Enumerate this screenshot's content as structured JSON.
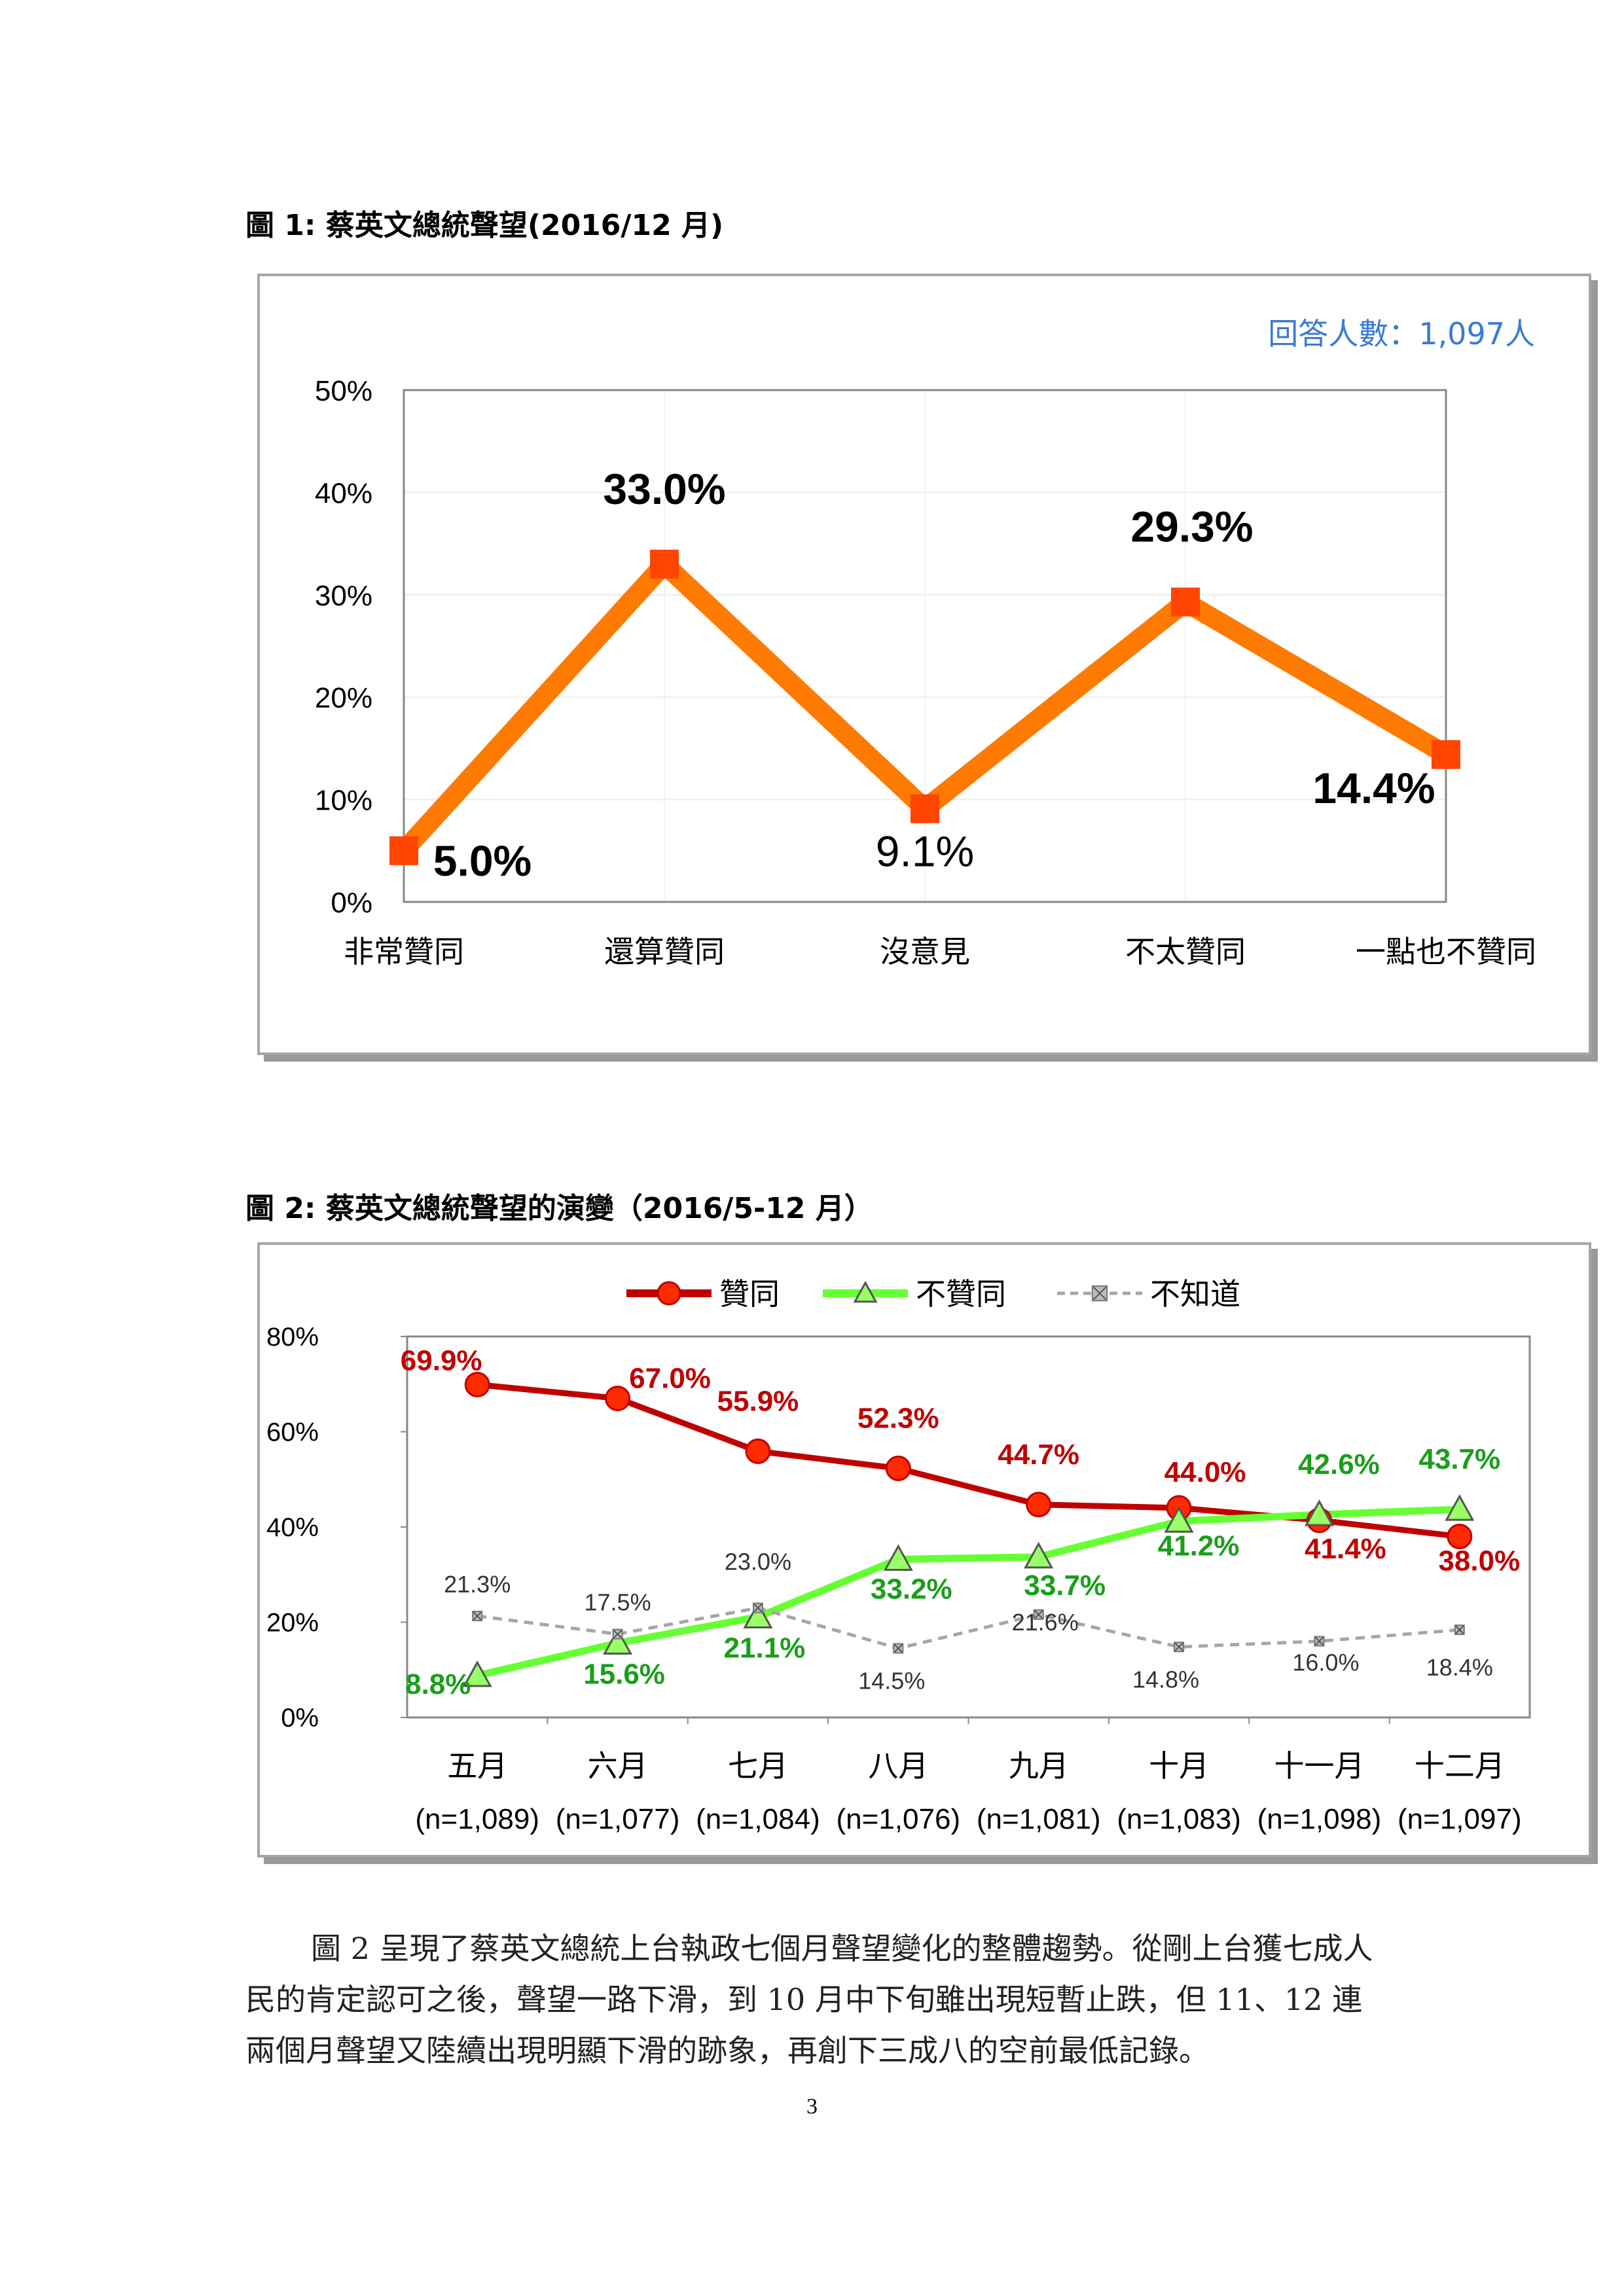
{
  "figure1": {
    "title": "圖 1:  蔡英文總統聲望(2016/12 月)",
    "respondents": "回答人數：1,097人",
    "chart_data": {
      "type": "line",
      "categories": [
        "非常贊同",
        "還算贊同",
        "沒意見",
        "不太贊同",
        "一點也不贊同"
      ],
      "values": [
        5.0,
        33.0,
        9.1,
        29.3,
        14.4
      ],
      "data_labels": [
        "5.0%",
        "33.0%",
        "9.1%",
        "29.3%",
        "14.4%"
      ],
      "ylim": [
        0,
        50
      ],
      "yticks": [
        "0%",
        "10%",
        "20%",
        "30%",
        "40%",
        "50%"
      ],
      "grid": true,
      "line_color": "#ff7a00",
      "marker_color": "#ff4500"
    }
  },
  "figure2": {
    "title": "圖 2:  蔡英文總統聲望的演變（2016/5-12 月）",
    "chart_data": {
      "type": "line",
      "categories": [
        "五月",
        "六月",
        "七月",
        "八月",
        "九月",
        "十月",
        "十一月",
        "十二月"
      ],
      "sample_sizes": [
        "(n=1,089)",
        "(n=1,077)",
        "(n=1,084)",
        "(n=1,076)",
        "(n=1,081)",
        "(n=1,083)",
        "(n=1,098)",
        "(n=1,097)"
      ],
      "ylim": [
        0,
        80
      ],
      "yticks": [
        "0%",
        "20%",
        "40%",
        "60%",
        "80%"
      ],
      "legend_position": "top",
      "series": [
        {
          "name": "贊同",
          "values": [
            69.9,
            67.0,
            55.9,
            52.3,
            44.7,
            44.0,
            41.4,
            38.0
          ],
          "labels": [
            "69.9%",
            "67.0%",
            "55.9%",
            "52.3%",
            "44.7%",
            "44.0%",
            "41.4%",
            "38.0%"
          ],
          "color": "#c00000",
          "marker": "circle"
        },
        {
          "name": "不贊同",
          "values": [
            8.8,
            15.6,
            21.1,
            33.2,
            33.7,
            41.2,
            42.6,
            43.7
          ],
          "labels": [
            "8.8%",
            "15.6%",
            "21.1%",
            "33.2%",
            "33.7%",
            "41.2%",
            "42.6%",
            "43.7%"
          ],
          "color": "#66ff33",
          "label_color": "#1a9e1a",
          "marker": "triangle"
        },
        {
          "name": "不知道",
          "values": [
            21.3,
            17.5,
            23.0,
            14.5,
            21.6,
            14.8,
            16.0,
            18.4
          ],
          "labels": [
            "21.3%",
            "17.5%",
            "23.0%",
            "14.5%",
            "21.6%",
            "14.8%",
            "16.0%",
            "18.4%"
          ],
          "color": "#a6a6a6",
          "label_color": "#333333",
          "marker": "square-x",
          "dashed": true
        }
      ]
    }
  },
  "paragraph": "圖 2 呈現了蔡英文總統上台執政七個月聲望變化的整體趨勢。從剛上台獲七成人民的肯定認可之後，聲望一路下滑，到 10 月中下旬雖出現短暫止跌，但 11、12 連兩個月聲望又陸續出現明顯下滑的跡象，再創下三成八的空前最低記錄。",
  "page_number": "3"
}
